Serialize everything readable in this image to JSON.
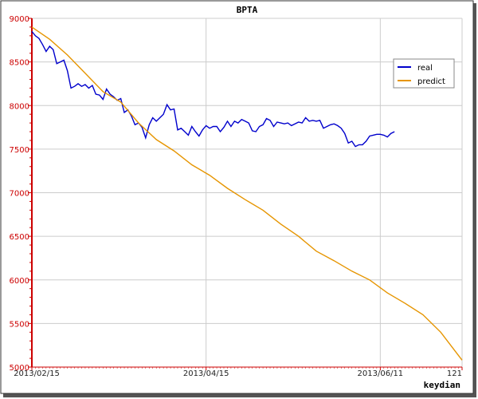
{
  "chart_data": {
    "type": "line",
    "title": "BPTA",
    "xlabel": "keydian",
    "ylabel": "",
    "ylim": [
      5000,
      9000
    ],
    "yticks": [
      5000,
      5500,
      6000,
      6500,
      7000,
      7500,
      8000,
      8500,
      9000
    ],
    "xlim": [
      0,
      121
    ],
    "xticks": [
      {
        "x": 0,
        "label": "2013/02/15"
      },
      {
        "x": 49,
        "label": "2013/04/15"
      },
      {
        "x": 98,
        "label": "2013/06/11"
      },
      {
        "x": 121,
        "label": "121"
      }
    ],
    "grid": true,
    "legend_position": "top-right",
    "series": [
      {
        "name": "real",
        "color": "#0000cc",
        "points": [
          [
            0,
            8850
          ],
          [
            1,
            8800
          ],
          [
            2,
            8770
          ],
          [
            3,
            8700
          ],
          [
            4,
            8620
          ],
          [
            5,
            8680
          ],
          [
            6,
            8640
          ],
          [
            7,
            8480
          ],
          [
            8,
            8500
          ],
          [
            9,
            8520
          ],
          [
            10,
            8400
          ],
          [
            11,
            8200
          ],
          [
            12,
            8220
          ],
          [
            13,
            8250
          ],
          [
            14,
            8220
          ],
          [
            15,
            8240
          ],
          [
            16,
            8200
          ],
          [
            17,
            8230
          ],
          [
            18,
            8130
          ],
          [
            19,
            8120
          ],
          [
            20,
            8070
          ],
          [
            21,
            8190
          ],
          [
            22,
            8130
          ],
          [
            23,
            8100
          ],
          [
            24,
            8060
          ],
          [
            25,
            8080
          ],
          [
            26,
            7920
          ],
          [
            27,
            7950
          ],
          [
            28,
            7880
          ],
          [
            29,
            7780
          ],
          [
            30,
            7800
          ],
          [
            31,
            7750
          ],
          [
            32,
            7630
          ],
          [
            33,
            7780
          ],
          [
            34,
            7860
          ],
          [
            35,
            7820
          ],
          [
            36,
            7860
          ],
          [
            37,
            7900
          ],
          [
            38,
            8010
          ],
          [
            39,
            7950
          ],
          [
            40,
            7960
          ],
          [
            41,
            7720
          ],
          [
            42,
            7740
          ],
          [
            43,
            7700
          ],
          [
            44,
            7660
          ],
          [
            45,
            7760
          ],
          [
            46,
            7700
          ],
          [
            47,
            7650
          ],
          [
            48,
            7720
          ],
          [
            49,
            7770
          ],
          [
            50,
            7740
          ],
          [
            51,
            7760
          ],
          [
            52,
            7760
          ],
          [
            53,
            7700
          ],
          [
            54,
            7750
          ],
          [
            55,
            7820
          ],
          [
            56,
            7760
          ],
          [
            57,
            7820
          ],
          [
            58,
            7800
          ],
          [
            59,
            7840
          ],
          [
            60,
            7820
          ],
          [
            61,
            7800
          ],
          [
            62,
            7710
          ],
          [
            63,
            7700
          ],
          [
            64,
            7760
          ],
          [
            65,
            7780
          ],
          [
            66,
            7850
          ],
          [
            67,
            7830
          ],
          [
            68,
            7760
          ],
          [
            69,
            7810
          ],
          [
            70,
            7800
          ],
          [
            71,
            7790
          ],
          [
            72,
            7800
          ],
          [
            73,
            7770
          ],
          [
            74,
            7790
          ],
          [
            75,
            7810
          ],
          [
            76,
            7800
          ],
          [
            77,
            7860
          ],
          [
            78,
            7820
          ],
          [
            79,
            7830
          ],
          [
            80,
            7820
          ],
          [
            81,
            7830
          ],
          [
            82,
            7740
          ],
          [
            83,
            7760
          ],
          [
            84,
            7780
          ],
          [
            85,
            7790
          ],
          [
            86,
            7770
          ],
          [
            87,
            7740
          ],
          [
            88,
            7680
          ],
          [
            89,
            7570
          ],
          [
            90,
            7590
          ],
          [
            91,
            7530
          ],
          [
            92,
            7550
          ],
          [
            93,
            7550
          ],
          [
            94,
            7590
          ],
          [
            95,
            7650
          ],
          [
            96,
            7660
          ],
          [
            97,
            7670
          ],
          [
            98,
            7670
          ],
          [
            99,
            7660
          ],
          [
            100,
            7640
          ],
          [
            101,
            7680
          ],
          [
            102,
            7700
          ]
        ]
      },
      {
        "name": "predict",
        "color": "#e69500",
        "points": [
          [
            0,
            8900
          ],
          [
            5,
            8760
          ],
          [
            10,
            8580
          ],
          [
            15,
            8370
          ],
          [
            20,
            8160
          ],
          [
            25,
            8040
          ],
          [
            30,
            7800
          ],
          [
            35,
            7610
          ],
          [
            40,
            7480
          ],
          [
            45,
            7320
          ],
          [
            50,
            7200
          ],
          [
            55,
            7050
          ],
          [
            60,
            6920
          ],
          [
            65,
            6800
          ],
          [
            70,
            6640
          ],
          [
            75,
            6500
          ],
          [
            80,
            6330
          ],
          [
            85,
            6220
          ],
          [
            90,
            6100
          ],
          [
            95,
            6000
          ],
          [
            100,
            5850
          ],
          [
            105,
            5730
          ],
          [
            110,
            5600
          ],
          [
            115,
            5400
          ],
          [
            121,
            5080
          ]
        ]
      }
    ]
  }
}
